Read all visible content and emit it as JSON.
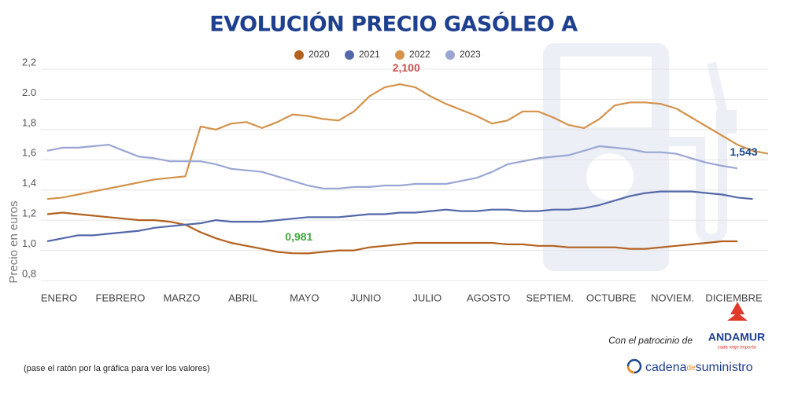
{
  "chart_data": {
    "type": "line",
    "title": "EVOLUCIÓN PRECIO GASÓLEO A",
    "y_label": "Precio en euros",
    "ylim": [
      0.8,
      2.2
    ],
    "yticks": [
      {
        "value": 0.8,
        "label": "0,8"
      },
      {
        "value": 1.0,
        "label": "1,0"
      },
      {
        "value": 1.2,
        "label": "1,2"
      },
      {
        "value": 1.4,
        "label": "1,4"
      },
      {
        "value": 1.6,
        "label": "1,6"
      },
      {
        "value": 1.8,
        "label": "1,8"
      },
      {
        "value": 2.0,
        "label": "2.0"
      },
      {
        "value": 2.2,
        "label": "2,2"
      }
    ],
    "grid": true,
    "legend": "top",
    "categories": [
      "ENERO",
      null,
      null,
      null,
      "FEBRERO",
      null,
      null,
      null,
      "MARZO",
      null,
      null,
      null,
      "ABRIL",
      null,
      null,
      null,
      "MAYO",
      null,
      null,
      null,
      "JUNIO",
      null,
      null,
      null,
      "JULIO",
      null,
      null,
      null,
      "AGOSTO",
      null,
      null,
      null,
      "SEPTIEM.",
      null,
      null,
      null,
      "OCTUBRE",
      null,
      null,
      null,
      "NOVIEM.",
      null,
      null,
      null,
      "DICIEMBRE",
      null,
      null,
      null
    ],
    "series": [
      {
        "name": "2020",
        "color": "#b3611f",
        "label_color": "#3fa33a",
        "values": [
          1.24,
          1.25,
          1.24,
          1.23,
          1.22,
          1.21,
          1.2,
          1.2,
          1.19,
          1.17,
          1.12,
          1.08,
          1.05,
          1.03,
          1.01,
          0.99,
          0.981,
          0.98,
          0.99,
          1.0,
          1.0,
          1.02,
          1.03,
          1.04,
          1.05,
          1.05,
          1.05,
          1.05,
          1.05,
          1.05,
          1.04,
          1.04,
          1.03,
          1.03,
          1.02,
          1.02,
          1.02,
          1.02,
          1.01,
          1.01,
          1.02,
          1.03,
          1.04,
          1.05,
          1.06,
          1.06,
          null,
          null
        ],
        "value_labels": [
          null,
          null,
          null,
          null,
          null,
          null,
          null,
          null,
          null,
          null,
          null,
          null,
          null,
          null,
          null,
          null,
          "0,981",
          null,
          null,
          null,
          null,
          null,
          null,
          null,
          null,
          null,
          null,
          null,
          null,
          null,
          null,
          null,
          null,
          null,
          null,
          null,
          null,
          null,
          null,
          null,
          null,
          null,
          null,
          null,
          null,
          null,
          null,
          null
        ]
      },
      {
        "name": "2021",
        "color": "#5468a9",
        "values": [
          1.06,
          1.08,
          1.1,
          1.1,
          1.11,
          1.12,
          1.13,
          1.15,
          1.16,
          1.17,
          1.18,
          1.2,
          1.19,
          1.19,
          1.19,
          1.2,
          1.21,
          1.22,
          1.22,
          1.22,
          1.23,
          1.24,
          1.24,
          1.25,
          1.25,
          1.26,
          1.27,
          1.26,
          1.26,
          1.27,
          1.27,
          1.26,
          1.26,
          1.27,
          1.27,
          1.28,
          1.3,
          1.33,
          1.36,
          1.38,
          1.39,
          1.39,
          1.39,
          1.38,
          1.37,
          1.35,
          1.34,
          null
        ]
      },
      {
        "name": "2022",
        "color": "#d4924a",
        "label_color": "#c9504f",
        "values": [
          1.34,
          1.35,
          1.37,
          1.39,
          1.41,
          1.43,
          1.45,
          1.47,
          1.48,
          1.49,
          1.82,
          1.8,
          1.84,
          1.85,
          1.81,
          1.85,
          1.9,
          1.89,
          1.87,
          1.86,
          1.92,
          2.02,
          2.08,
          2.1,
          2.08,
          2.02,
          1.97,
          1.93,
          1.89,
          1.84,
          1.86,
          1.92,
          1.92,
          1.88,
          1.83,
          1.81,
          1.87,
          1.96,
          1.98,
          1.98,
          1.97,
          1.94,
          1.88,
          1.82,
          1.76,
          1.7,
          1.66,
          1.64
        ],
        "value_labels": [
          null,
          null,
          null,
          null,
          null,
          null,
          null,
          null,
          null,
          null,
          null,
          null,
          null,
          null,
          null,
          null,
          null,
          null,
          null,
          null,
          null,
          null,
          null,
          "2,100",
          null,
          null,
          null,
          null,
          null,
          null,
          null,
          null,
          null,
          null,
          null,
          null,
          null,
          null,
          null,
          null,
          null,
          null,
          null,
          null,
          null,
          null,
          null,
          null
        ]
      },
      {
        "name": "2023",
        "color": "#9aa6d4",
        "label_color": "#1f4a8a",
        "values": [
          1.66,
          1.68,
          1.68,
          1.69,
          1.7,
          1.66,
          1.62,
          1.61,
          1.59,
          1.59,
          1.59,
          1.57,
          1.54,
          1.53,
          1.52,
          1.49,
          1.46,
          1.43,
          1.41,
          1.41,
          1.42,
          1.42,
          1.43,
          1.43,
          1.44,
          1.44,
          1.44,
          1.46,
          1.48,
          1.52,
          1.57,
          1.59,
          1.61,
          1.62,
          1.63,
          1.66,
          1.69,
          1.68,
          1.67,
          1.65,
          1.65,
          1.64,
          1.61,
          1.58,
          1.56,
          1.543,
          null,
          null
        ],
        "value_labels": [
          null,
          null,
          null,
          null,
          null,
          null,
          null,
          null,
          null,
          null,
          null,
          null,
          null,
          null,
          null,
          null,
          null,
          null,
          null,
          null,
          null,
          null,
          null,
          null,
          null,
          null,
          null,
          null,
          null,
          null,
          null,
          null,
          null,
          null,
          null,
          null,
          null,
          null,
          null,
          null,
          null,
          null,
          null,
          null,
          null,
          "1,543",
          null,
          null
        ]
      }
    ]
  },
  "footer": {
    "hint": "(pase el ratón por la gráfica para ver los valores)",
    "sponsor": "Con el patrocinio de",
    "sponsor_name": "ANDAMUR",
    "sponsor_tagline": "cada viaje importa",
    "brand_1": "cadena",
    "brand_2": "de",
    "brand_3": "suministro"
  }
}
